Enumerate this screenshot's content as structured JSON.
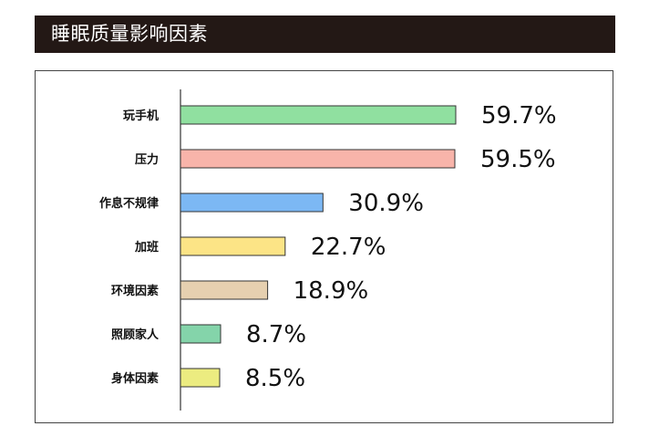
{
  "title": "睡眠质量影响因素",
  "chart_data": {
    "type": "bar",
    "orientation": "horizontal",
    "title": "睡眠质量影响因素",
    "xlabel": "",
    "ylabel": "",
    "xlim": [
      0,
      100
    ],
    "grid": false,
    "categories": [
      "玩手机",
      "压力",
      "作息不规律",
      "加班",
      "环境因素",
      "照顾家人",
      "身体因素"
    ],
    "values": [
      59.7,
      59.5,
      30.9,
      22.7,
      18.9,
      8.7,
      8.5
    ],
    "value_labels": [
      "59.7%",
      "59.5%",
      "30.9%",
      "22.7%",
      "18.9%",
      "8.7%",
      "8.5%"
    ],
    "colors": [
      "#90e0a0",
      "#f8b4aa",
      "#7cb8f4",
      "#fce486",
      "#e6d0b0",
      "#84d4aa",
      "#ecec80"
    ],
    "bar_stroke": "#333333",
    "axis_color": "#333333"
  }
}
